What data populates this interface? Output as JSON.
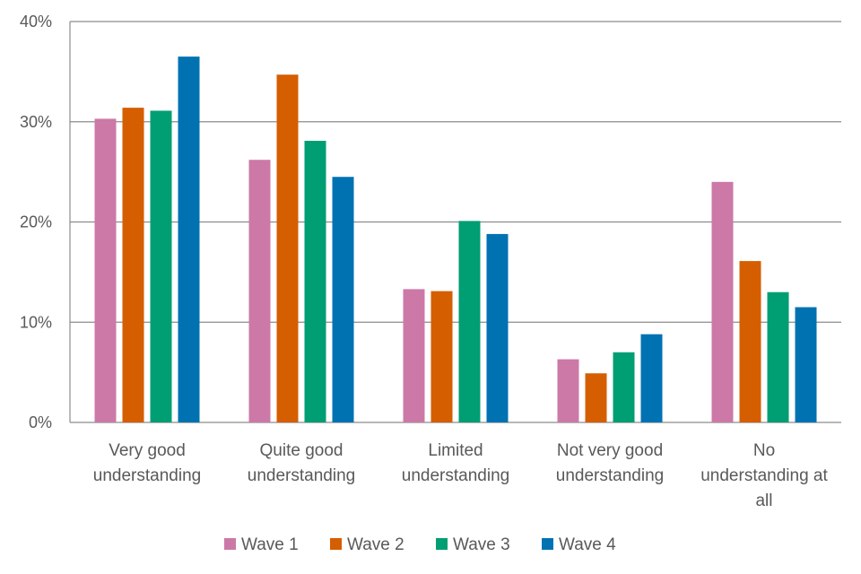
{
  "chart_data": {
    "type": "bar",
    "title": "",
    "xlabel": "",
    "ylabel": "",
    "ylim": [
      0,
      40
    ],
    "yticks": [
      "0%",
      "10%",
      "20%",
      "30%",
      "40%"
    ],
    "grid": true,
    "legend_position": "bottom",
    "categories": [
      [
        "Very good",
        "understanding"
      ],
      [
        "Quite good",
        "understanding"
      ],
      [
        "Limited",
        "understanding"
      ],
      [
        "Not very good",
        "understanding"
      ],
      [
        "No",
        "understanding at",
        "all"
      ]
    ],
    "series": [
      {
        "name": "Wave 1",
        "color": "#CC79A7",
        "values": [
          30.3,
          26.2,
          13.3,
          6.3,
          24.0
        ]
      },
      {
        "name": "Wave 2",
        "color": "#D55E00",
        "values": [
          31.4,
          34.7,
          13.1,
          4.9,
          16.1
        ]
      },
      {
        "name": "Wave 3",
        "color": "#009E73",
        "values": [
          31.1,
          28.1,
          20.1,
          7.0,
          13.0
        ]
      },
      {
        "name": "Wave 4",
        "color": "#0072B2",
        "values": [
          36.5,
          24.5,
          18.8,
          8.8,
          11.5
        ]
      }
    ]
  },
  "colors": {
    "grid": "#8c8c8c",
    "text": "#595959",
    "background": "#ffffff"
  }
}
